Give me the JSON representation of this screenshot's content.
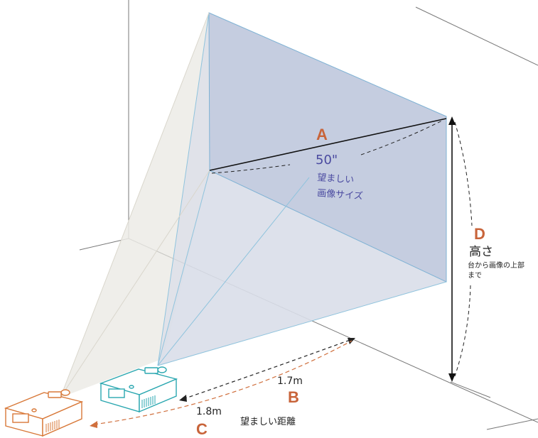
{
  "colors": {
    "accent_orange": "#c8643a",
    "screen_fill": "#c5cde0",
    "beam_fill": "#d9dee9",
    "beam_left_fill": "#ecebe6",
    "blue_text": "#4a4aa0",
    "projector_teal": "#2aa7b0",
    "projector_orange": "#d87838"
  },
  "labels": {
    "a": {
      "letter": "A",
      "size": "50\"",
      "line1": "望ましい",
      "line2": "画像サイズ"
    },
    "b": {
      "letter": "B",
      "distance": "1.7m"
    },
    "c": {
      "letter": "C",
      "distance": "1.8m"
    },
    "d": {
      "letter": "D",
      "title": "高さ",
      "line1": "台から画像の上部",
      "line2": "まで"
    },
    "distance_caption": "望ましい距離"
  },
  "icons": [
    "projector-near-icon",
    "projector-far-icon"
  ]
}
